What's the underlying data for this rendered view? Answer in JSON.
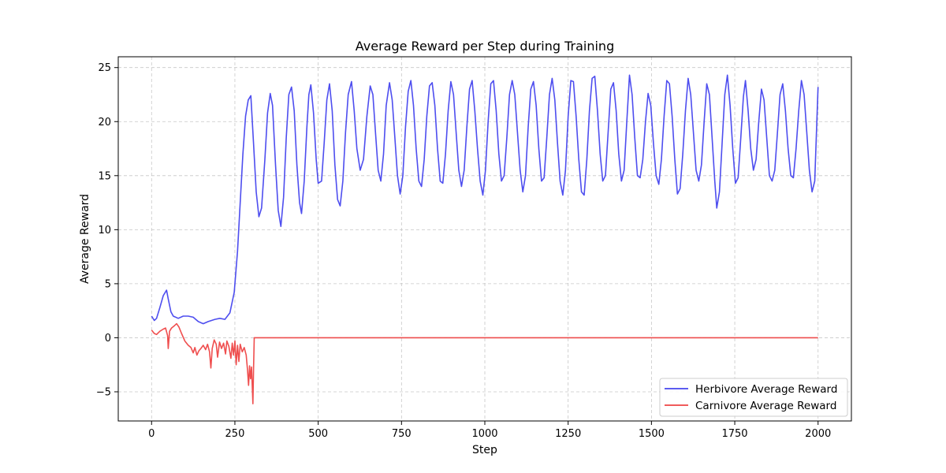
{
  "chart_data": {
    "type": "line",
    "title": "Average Reward per Step during Training",
    "xlabel": "Step",
    "ylabel": "Average Reward",
    "xlim": [
      -100,
      2100
    ],
    "ylim": [
      -7.7,
      26
    ],
    "xticks": [
      0,
      250,
      500,
      750,
      1000,
      1250,
      1500,
      1750,
      2000
    ],
    "yticks": [
      -5,
      0,
      5,
      10,
      15,
      20,
      25
    ],
    "xtick_labels": [
      "0",
      "250",
      "500",
      "750",
      "1000",
      "1250",
      "1500",
      "1750",
      "2000"
    ],
    "ytick_labels": [
      "−5",
      "0",
      "5",
      "10",
      "15",
      "20",
      "25"
    ],
    "grid": true,
    "legend_position": "bottom-right",
    "series": [
      {
        "name": "Herbivore Average Reward",
        "color": "#4444ee",
        "points": [
          [
            0,
            2.0
          ],
          [
            8,
            1.6
          ],
          [
            15,
            1.8
          ],
          [
            25,
            2.8
          ],
          [
            35,
            3.9
          ],
          [
            45,
            4.4
          ],
          [
            50,
            3.6
          ],
          [
            58,
            2.4
          ],
          [
            65,
            2.0
          ],
          [
            80,
            1.8
          ],
          [
            95,
            2.0
          ],
          [
            110,
            2.0
          ],
          [
            125,
            1.9
          ],
          [
            140,
            1.5
          ],
          [
            155,
            1.3
          ],
          [
            170,
            1.5
          ],
          [
            190,
            1.7
          ],
          [
            205,
            1.8
          ],
          [
            220,
            1.7
          ],
          [
            235,
            2.3
          ],
          [
            248,
            4.2
          ],
          [
            258,
            8.0
          ],
          [
            266,
            12.5
          ],
          [
            274,
            17.0
          ],
          [
            282,
            20.5
          ],
          [
            290,
            22.0
          ],
          [
            298,
            22.4
          ],
          [
            306,
            18.0
          ],
          [
            314,
            13.5
          ],
          [
            322,
            11.2
          ],
          [
            330,
            12.0
          ],
          [
            340,
            16.5
          ],
          [
            348,
            20.8
          ],
          [
            356,
            22.6
          ],
          [
            363,
            21.5
          ],
          [
            372,
            16.0
          ],
          [
            380,
            11.8
          ],
          [
            388,
            10.3
          ],
          [
            396,
            13.0
          ],
          [
            404,
            18.5
          ],
          [
            412,
            22.5
          ],
          [
            420,
            23.2
          ],
          [
            428,
            21.0
          ],
          [
            436,
            16.0
          ],
          [
            444,
            12.5
          ],
          [
            450,
            11.5
          ],
          [
            458,
            14.5
          ],
          [
            466,
            19.5
          ],
          [
            472,
            22.5
          ],
          [
            478,
            23.4
          ],
          [
            486,
            20.8
          ],
          [
            494,
            16.5
          ],
          [
            500,
            14.3
          ],
          [
            510,
            14.5
          ],
          [
            518,
            18.0
          ],
          [
            526,
            22.0
          ],
          [
            534,
            23.5
          ],
          [
            542,
            21.0
          ],
          [
            550,
            16.0
          ],
          [
            558,
            12.8
          ],
          [
            566,
            12.2
          ],
          [
            574,
            14.5
          ],
          [
            582,
            19.0
          ],
          [
            590,
            22.5
          ],
          [
            600,
            23.7
          ],
          [
            608,
            21.0
          ],
          [
            616,
            17.5
          ],
          [
            626,
            15.5
          ],
          [
            636,
            16.5
          ],
          [
            646,
            20.5
          ],
          [
            656,
            23.3
          ],
          [
            664,
            22.5
          ],
          [
            672,
            19.0
          ],
          [
            680,
            15.5
          ],
          [
            688,
            14.5
          ],
          [
            696,
            17.0
          ],
          [
            704,
            21.5
          ],
          [
            714,
            23.6
          ],
          [
            722,
            22.0
          ],
          [
            730,
            18.5
          ],
          [
            738,
            15.0
          ],
          [
            746,
            13.3
          ],
          [
            754,
            15.0
          ],
          [
            762,
            19.5
          ],
          [
            770,
            22.8
          ],
          [
            778,
            23.8
          ],
          [
            786,
            21.5
          ],
          [
            794,
            17.5
          ],
          [
            802,
            14.5
          ],
          [
            810,
            14.0
          ],
          [
            818,
            16.5
          ],
          [
            826,
            20.5
          ],
          [
            834,
            23.3
          ],
          [
            842,
            23.6
          ],
          [
            850,
            21.5
          ],
          [
            858,
            17.5
          ],
          [
            866,
            14.5
          ],
          [
            874,
            14.3
          ],
          [
            882,
            17.0
          ],
          [
            890,
            21.0
          ],
          [
            898,
            23.7
          ],
          [
            906,
            22.5
          ],
          [
            914,
            19.0
          ],
          [
            922,
            15.5
          ],
          [
            930,
            14.0
          ],
          [
            938,
            15.5
          ],
          [
            946,
            19.5
          ],
          [
            954,
            23.0
          ],
          [
            962,
            23.8
          ],
          [
            970,
            21.0
          ],
          [
            978,
            17.5
          ],
          [
            986,
            14.5
          ],
          [
            994,
            13.2
          ],
          [
            1002,
            15.5
          ],
          [
            1010,
            20.0
          ],
          [
            1018,
            23.5
          ],
          [
            1026,
            23.8
          ],
          [
            1034,
            21.0
          ],
          [
            1042,
            17.0
          ],
          [
            1050,
            14.5
          ],
          [
            1058,
            15.0
          ],
          [
            1066,
            18.5
          ],
          [
            1074,
            22.5
          ],
          [
            1082,
            23.8
          ],
          [
            1090,
            22.5
          ],
          [
            1098,
            19.0
          ],
          [
            1106,
            15.5
          ],
          [
            1114,
            13.5
          ],
          [
            1122,
            15.0
          ],
          [
            1130,
            19.5
          ],
          [
            1138,
            23.0
          ],
          [
            1146,
            23.7
          ],
          [
            1154,
            21.5
          ],
          [
            1162,
            17.5
          ],
          [
            1170,
            14.5
          ],
          [
            1178,
            14.8
          ],
          [
            1186,
            18.5
          ],
          [
            1194,
            22.5
          ],
          [
            1202,
            24.0
          ],
          [
            1210,
            22.0
          ],
          [
            1218,
            18.0
          ],
          [
            1226,
            14.5
          ],
          [
            1234,
            13.2
          ],
          [
            1242,
            15.5
          ],
          [
            1250,
            20.5
          ],
          [
            1258,
            23.8
          ],
          [
            1266,
            23.7
          ],
          [
            1274,
            20.5
          ],
          [
            1282,
            16.5
          ],
          [
            1290,
            13.5
          ],
          [
            1298,
            13.2
          ],
          [
            1306,
            16.5
          ],
          [
            1314,
            21.0
          ],
          [
            1322,
            24.0
          ],
          [
            1330,
            24.2
          ],
          [
            1338,
            21.0
          ],
          [
            1346,
            17.0
          ],
          [
            1354,
            14.5
          ],
          [
            1362,
            15.0
          ],
          [
            1370,
            19.0
          ],
          [
            1378,
            23.0
          ],
          [
            1386,
            23.6
          ],
          [
            1394,
            21.0
          ],
          [
            1402,
            17.0
          ],
          [
            1410,
            14.5
          ],
          [
            1418,
            15.5
          ],
          [
            1426,
            20.0
          ],
          [
            1434,
            24.3
          ],
          [
            1442,
            22.5
          ],
          [
            1450,
            18.5
          ],
          [
            1458,
            15.0
          ],
          [
            1466,
            14.8
          ],
          [
            1474,
            16.5
          ],
          [
            1482,
            20.0
          ],
          [
            1490,
            22.6
          ],
          [
            1498,
            21.5
          ],
          [
            1506,
            18.0
          ],
          [
            1514,
            15.0
          ],
          [
            1522,
            14.2
          ],
          [
            1530,
            16.5
          ],
          [
            1538,
            20.5
          ],
          [
            1546,
            23.8
          ],
          [
            1554,
            23.5
          ],
          [
            1562,
            20.5
          ],
          [
            1570,
            16.5
          ],
          [
            1578,
            13.3
          ],
          [
            1586,
            13.8
          ],
          [
            1594,
            17.0
          ],
          [
            1602,
            21.0
          ],
          [
            1610,
            24.0
          ],
          [
            1618,
            22.5
          ],
          [
            1626,
            19.0
          ],
          [
            1634,
            15.5
          ],
          [
            1642,
            14.5
          ],
          [
            1650,
            16.0
          ],
          [
            1658,
            20.0
          ],
          [
            1666,
            23.5
          ],
          [
            1674,
            22.5
          ],
          [
            1682,
            18.5
          ],
          [
            1690,
            14.5
          ],
          [
            1696,
            12.0
          ],
          [
            1704,
            13.5
          ],
          [
            1712,
            18.0
          ],
          [
            1720,
            22.5
          ],
          [
            1728,
            24.3
          ],
          [
            1736,
            21.5
          ],
          [
            1744,
            17.5
          ],
          [
            1752,
            14.3
          ],
          [
            1760,
            14.8
          ],
          [
            1768,
            18.5
          ],
          [
            1776,
            22.3
          ],
          [
            1782,
            23.8
          ],
          [
            1790,
            21.0
          ],
          [
            1798,
            17.5
          ],
          [
            1806,
            15.5
          ],
          [
            1814,
            16.5
          ],
          [
            1822,
            20.0
          ],
          [
            1830,
            23.0
          ],
          [
            1838,
            22.0
          ],
          [
            1846,
            18.5
          ],
          [
            1854,
            15.0
          ],
          [
            1862,
            14.5
          ],
          [
            1870,
            15.5
          ],
          [
            1878,
            19.0
          ],
          [
            1886,
            22.5
          ],
          [
            1894,
            23.5
          ],
          [
            1902,
            21.0
          ],
          [
            1910,
            17.5
          ],
          [
            1918,
            15.0
          ],
          [
            1926,
            14.8
          ],
          [
            1934,
            17.5
          ],
          [
            1942,
            21.0
          ],
          [
            1950,
            23.8
          ],
          [
            1958,
            22.5
          ],
          [
            1966,
            19.0
          ],
          [
            1974,
            15.5
          ],
          [
            1982,
            13.5
          ],
          [
            1990,
            14.5
          ],
          [
            2000,
            23.2
          ]
        ]
      },
      {
        "name": "Carnivore Average Reward",
        "color": "#ee4444",
        "points": [
          [
            0,
            0.7
          ],
          [
            8,
            0.4
          ],
          [
            15,
            0.3
          ],
          [
            25,
            0.6
          ],
          [
            35,
            0.8
          ],
          [
            42,
            0.9
          ],
          [
            48,
            0.2
          ],
          [
            50,
            -1.0
          ],
          [
            54,
            0.6
          ],
          [
            60,
            0.9
          ],
          [
            68,
            1.1
          ],
          [
            75,
            1.3
          ],
          [
            82,
            1.0
          ],
          [
            90,
            0.4
          ],
          [
            100,
            -0.3
          ],
          [
            110,
            -0.7
          ],
          [
            118,
            -0.9
          ],
          [
            125,
            -1.4
          ],
          [
            130,
            -0.9
          ],
          [
            136,
            -1.6
          ],
          [
            142,
            -1.2
          ],
          [
            148,
            -1.0
          ],
          [
            155,
            -0.7
          ],
          [
            162,
            -1.1
          ],
          [
            168,
            -0.6
          ],
          [
            174,
            -1.3
          ],
          [
            178,
            -2.8
          ],
          [
            182,
            -1.0
          ],
          [
            188,
            -0.2
          ],
          [
            194,
            -0.6
          ],
          [
            198,
            -1.8
          ],
          [
            204,
            -0.4
          ],
          [
            210,
            -1.0
          ],
          [
            216,
            -0.5
          ],
          [
            222,
            -1.5
          ],
          [
            226,
            -0.3
          ],
          [
            232,
            -0.8
          ],
          [
            238,
            -1.9
          ],
          [
            242,
            -0.5
          ],
          [
            246,
            -1.6
          ],
          [
            250,
            -0.3
          ],
          [
            254,
            -2.5
          ],
          [
            258,
            -0.7
          ],
          [
            262,
            -2.2
          ],
          [
            266,
            -0.6
          ],
          [
            272,
            -1.3
          ],
          [
            278,
            -0.9
          ],
          [
            284,
            -1.6
          ],
          [
            288,
            -3.0
          ],
          [
            291,
            -4.4
          ],
          [
            294,
            -2.6
          ],
          [
            297,
            -3.8
          ],
          [
            300,
            -2.7
          ],
          [
            304,
            -6.1
          ],
          [
            306,
            -3.0
          ],
          [
            308,
            0.0
          ],
          [
            2000,
            0.0
          ]
        ]
      }
    ]
  }
}
